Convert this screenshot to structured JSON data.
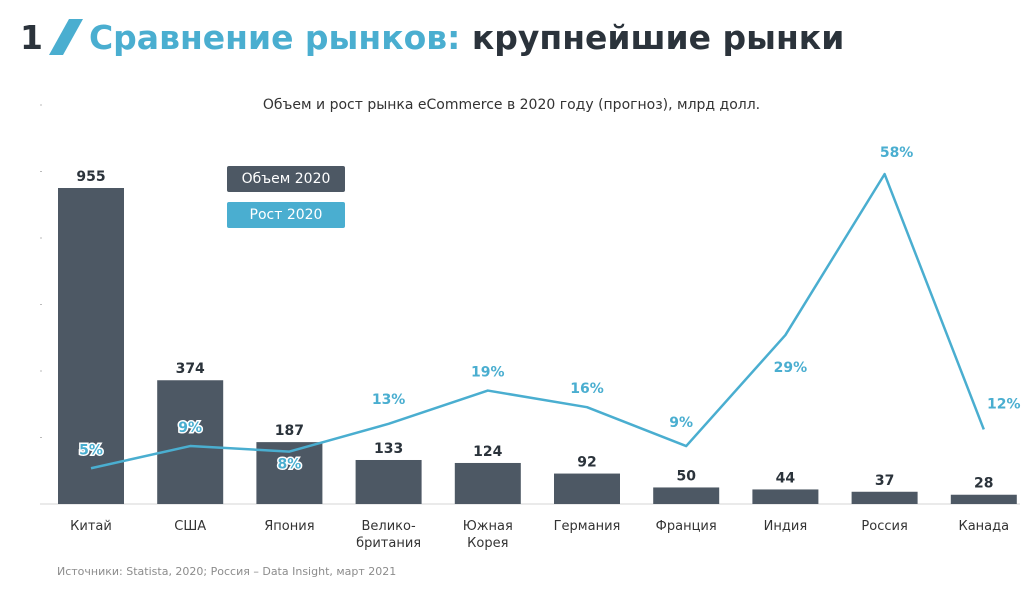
{
  "slide": {
    "number": "1",
    "title_accent": "Сравнение рынков:",
    "title_rest": "крупнейшие рынки",
    "source": "Источники: Statista, 2020; Россия – Data Insight, март 2021"
  },
  "colors": {
    "bar": "#4d5864",
    "line": "#4aaed0",
    "text_dark": "#2b333b"
  },
  "chart_data": {
    "type": "bar",
    "title": "Объем и рост рынка eCommerce в 2020 году (прогноз), млрд долл.",
    "categories": [
      "Китай",
      "США",
      "Япония",
      "Велико-\nбритания",
      "Южная\nКорея",
      "Германия",
      "Франция",
      "Индия",
      "Россия",
      "Канада"
    ],
    "series": [
      {
        "name": "Объем 2020",
        "type": "bar",
        "values": [
          955,
          374,
          187,
          133,
          124,
          92,
          50,
          44,
          37,
          28
        ],
        "labels": [
          "955",
          "374",
          "187",
          "133",
          "124",
          "92",
          "50",
          "44",
          "37",
          "28"
        ]
      },
      {
        "name": "Рост 2020",
        "type": "line",
        "values": [
          5,
          9,
          8,
          13,
          19,
          16,
          9,
          29,
          58,
          12
        ],
        "labels": [
          "5%",
          "9%",
          "8%",
          "13%",
          "19%",
          "16%",
          "9%",
          "29%",
          "58%",
          "12%"
        ]
      }
    ],
    "legend": "top-left",
    "grid": false
  }
}
